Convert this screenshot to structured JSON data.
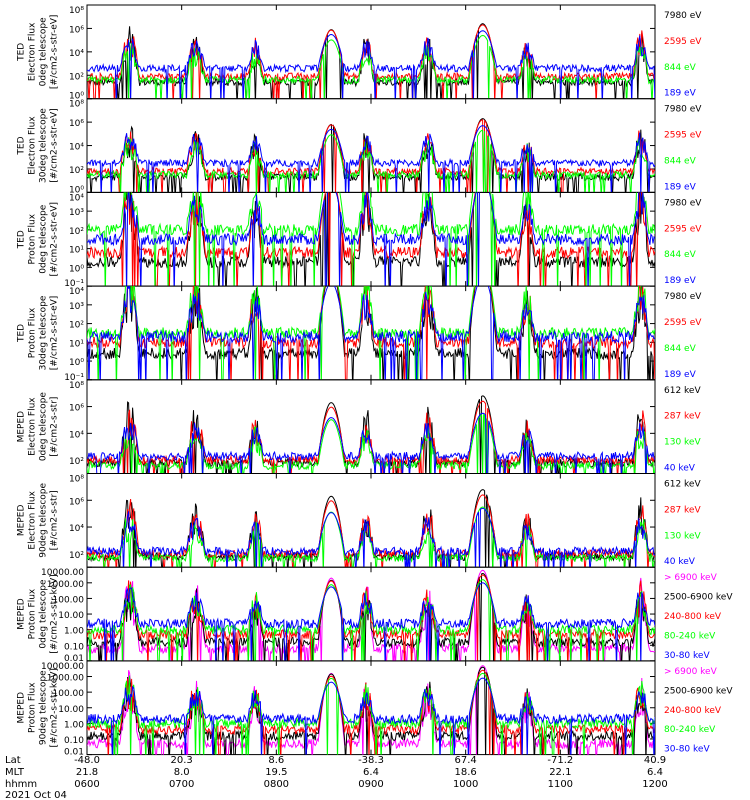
{
  "chart_data": [
    {
      "type": "line",
      "instrument": "TED",
      "ylabel": [
        "TED",
        "Electron Flux",
        "0deg telescope",
        "[#/cm2-s-str-eV]"
      ],
      "scale": "log",
      "ylim_exp": [
        0,
        8
      ],
      "tick_labels": [
        "10⁰",
        "10²",
        "10⁴",
        "10⁶",
        "10⁸"
      ],
      "series": [
        {
          "name": "7980 eV",
          "color": "#000000",
          "level": 1.4
        },
        {
          "name": "2595 eV",
          "color": "#ff0000",
          "level": 1.9
        },
        {
          "name": "844 eV",
          "color": "#00ff00",
          "level": 1.6
        },
        {
          "name": "189 eV",
          "color": "#0000ff",
          "level": 2.6
        }
      ]
    },
    {
      "type": "line",
      "instrument": "TED",
      "ylabel": [
        "TED",
        "Electron Flux",
        "30deg telescope",
        "[#/cm2-s-str-eV]"
      ],
      "scale": "log",
      "ylim_exp": [
        0,
        8
      ],
      "tick_labels": [
        "10⁰",
        "10²",
        "10⁴",
        "10⁶",
        "10⁸"
      ],
      "series": [
        {
          "name": "7980 eV",
          "color": "#000000",
          "level": 1.3
        },
        {
          "name": "2595 eV",
          "color": "#ff0000",
          "level": 1.8
        },
        {
          "name": "844 eV",
          "color": "#00ff00",
          "level": 1.5
        },
        {
          "name": "189 eV",
          "color": "#0000ff",
          "level": 2.5
        }
      ]
    },
    {
      "type": "line",
      "instrument": "TED",
      "ylabel": [
        "TED",
        "Proton Flux",
        "0deg telescope",
        "[#/cm2-s-str-eV]"
      ],
      "scale": "log",
      "ylim_exp": [
        -1,
        4
      ],
      "tick_labels": [
        "10⁻¹",
        "10⁰",
        "10¹",
        "10²",
        "10³",
        "10⁴"
      ],
      "series": [
        {
          "name": "7980 eV",
          "color": "#000000",
          "level": 0.3
        },
        {
          "name": "2595 eV",
          "color": "#ff0000",
          "level": 0.8
        },
        {
          "name": "844 eV",
          "color": "#00ff00",
          "level": 2.0
        },
        {
          "name": "189 eV",
          "color": "#0000ff",
          "level": 1.5
        }
      ]
    },
    {
      "type": "line",
      "instrument": "TED",
      "ylabel": [
        "TED",
        "Proton Flux",
        "30deg telescope",
        "[#/cm2-s-str-eV]"
      ],
      "scale": "log",
      "ylim_exp": [
        -1,
        4
      ],
      "tick_labels": [
        "10⁻¹",
        "10⁰",
        "10¹",
        "10²",
        "10³",
        "10⁴"
      ],
      "series": [
        {
          "name": "7980 eV",
          "color": "#000000",
          "level": 0.4
        },
        {
          "name": "2595 eV",
          "color": "#ff0000",
          "level": 1.0
        },
        {
          "name": "844 eV",
          "color": "#00ff00",
          "level": 1.5
        },
        {
          "name": "189 eV",
          "color": "#0000ff",
          "level": 1.3
        }
      ]
    },
    {
      "type": "line",
      "instrument": "MEPED",
      "ylabel": [
        "MEPED",
        "Electron Flux",
        "0deg telescope",
        "[#/cm2-s-str]"
      ],
      "scale": "log",
      "ylim_exp": [
        1,
        8
      ],
      "tick_labels": [
        "10²",
        "10⁴",
        "10⁶",
        "10⁸"
      ],
      "tick_exps": [
        2,
        4,
        6,
        8
      ],
      "series": [
        {
          "name": "612 keV",
          "color": "#000000",
          "level": 1.8
        },
        {
          "name": "287 keV",
          "color": "#ff0000",
          "level": 2.0
        },
        {
          "name": "130 keV",
          "color": "#00ff00",
          "level": 1.6
        },
        {
          "name": "40 keV",
          "color": "#0000ff",
          "level": 2.3
        }
      ]
    },
    {
      "type": "line",
      "instrument": "MEPED",
      "ylabel": [
        "MEPED",
        "Electron Flux",
        "90deg telescope",
        "[#/cm2-s-str]"
      ],
      "scale": "log",
      "ylim_exp": [
        1,
        8
      ],
      "tick_labels": [
        "10²",
        "10⁴",
        "10⁶",
        "10⁸"
      ],
      "tick_exps": [
        2,
        4,
        6,
        8
      ],
      "series": [
        {
          "name": "612 keV",
          "color": "#000000",
          "level": 1.8
        },
        {
          "name": "287 keV",
          "color": "#ff0000",
          "level": 2.0
        },
        {
          "name": "130 keV",
          "color": "#00ff00",
          "level": 1.7
        },
        {
          "name": "40 keV",
          "color": "#0000ff",
          "level": 2.2
        }
      ]
    },
    {
      "type": "line",
      "instrument": "MEPED",
      "ylabel": [
        "MEPED",
        "Proton Flux",
        "0deg telescope",
        "[#/cm2-s-str-keV]"
      ],
      "scale": "log",
      "ylim_exp": [
        -2,
        4
      ],
      "tick_labels": [
        "0.01",
        "0.10",
        "1.00",
        "10.00",
        "100.00",
        "1000.00",
        "10000.00"
      ],
      "series": [
        {
          "name": "> 6900 keV",
          "color": "#ff00ff",
          "level": -1.2
        },
        {
          "name": "2500-6900 keV",
          "color": "#000000",
          "level": -0.8
        },
        {
          "name": "240-800 keV",
          "color": "#ff0000",
          "level": -0.3
        },
        {
          "name": "80-240 keV",
          "color": "#00ff00",
          "level": 0.0
        },
        {
          "name": "30-80 keV",
          "color": "#0000ff",
          "level": 0.4
        }
      ]
    },
    {
      "type": "line",
      "instrument": "MEPED",
      "ylabel": [
        "MEPED",
        "Proton Flux",
        "90deg telescope",
        "[#/cm2-s-str-keV]"
      ],
      "scale": "log",
      "ylim_exp": [
        -2,
        4
      ],
      "tick_labels": [
        "0.01",
        "0.10",
        "1.00",
        "10.00",
        "100.00",
        "1000.00",
        "10000.00"
      ],
      "series": [
        {
          "name": "> 6900 keV",
          "color": "#ff00ff",
          "level": -1.3
        },
        {
          "name": "2500-6900 keV",
          "color": "#000000",
          "level": -0.8
        },
        {
          "name": "240-800 keV",
          "color": "#ff0000",
          "level": -0.4
        },
        {
          "name": "80-240 keV",
          "color": "#00ff00",
          "level": 0.0
        },
        {
          "name": "30-80 keV",
          "color": "#0000ff",
          "level": 0.3
        }
      ]
    }
  ],
  "xaxis": {
    "hours": [
      6.0,
      7.0,
      8.0,
      9.0,
      10.0,
      11.0,
      12.0
    ],
    "row_labels": [
      "Lat",
      "MLT",
      "hhmm"
    ],
    "lat": [
      "-48.0",
      "20.3",
      "8.6",
      "-38.3",
      "67.4",
      "-71.2",
      "40.9"
    ],
    "mlt": [
      "21.8",
      "8.0",
      "19.5",
      "6.4",
      "18.6",
      "22.1",
      "6.4"
    ],
    "hhmm": [
      "0600",
      "0700",
      "0800",
      "0900",
      "1000",
      "1100",
      "1200"
    ],
    "date": "2021 Oct 04"
  },
  "passes": [
    {
      "t": 6.45,
      "amp": 4.0,
      "width": 0.1,
      "type": "spiky"
    },
    {
      "t": 7.15,
      "amp": 3.5,
      "width": 0.1,
      "type": "spiky"
    },
    {
      "t": 7.78,
      "amp": 3.2,
      "width": 0.08,
      "type": "spiky"
    },
    {
      "t": 8.58,
      "amp": 4.5,
      "width": 0.14,
      "type": "dome"
    },
    {
      "t": 8.95,
      "amp": 3.5,
      "width": 0.08,
      "type": "spiky"
    },
    {
      "t": 9.6,
      "amp": 3.5,
      "width": 0.09,
      "type": "spiky"
    },
    {
      "t": 10.18,
      "amp": 5.0,
      "width": 0.15,
      "type": "dome"
    },
    {
      "t": 10.65,
      "amp": 3.0,
      "width": 0.08,
      "type": "spiky"
    },
    {
      "t": 11.85,
      "amp": 3.8,
      "width": 0.08,
      "type": "spiky"
    }
  ]
}
